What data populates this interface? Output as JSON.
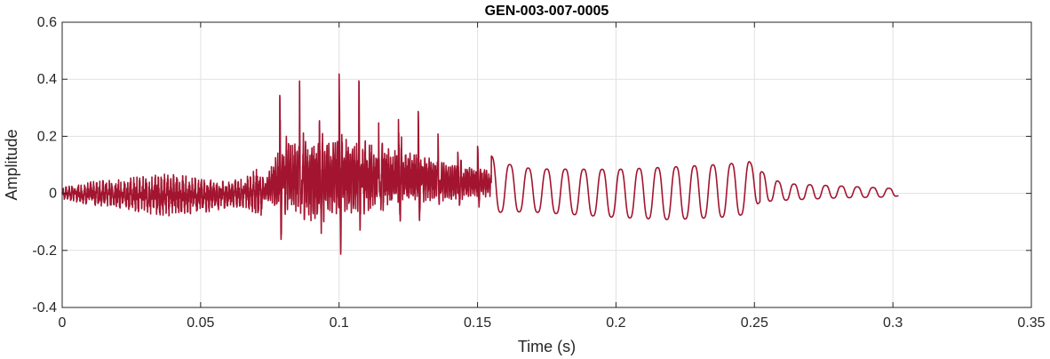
{
  "chart_data": {
    "type": "line",
    "title": "GEN-003-007-0005",
    "xlabel": "Time (s)",
    "ylabel": "Amplitude",
    "xlim": [
      0,
      0.35
    ],
    "ylim": [
      -0.4,
      0.6
    ],
    "xticks": [
      0,
      0.05,
      0.1,
      0.15,
      0.2,
      0.25,
      0.3,
      0.35
    ],
    "yticks": [
      -0.4,
      -0.2,
      0,
      0.2,
      0.4,
      0.6
    ],
    "xtick_labels": [
      "0",
      "0.05",
      "0.1",
      "0.15",
      "0.2",
      "0.25",
      "0.3",
      "0.35"
    ],
    "ytick_labels": [
      "-0.4",
      "-0.2",
      "0",
      "0.2",
      "0.4",
      "0.6"
    ],
    "grid": true,
    "series": [
      {
        "color": "#A2142F",
        "envelope": {
          "t": [
            0,
            0.01,
            0.02,
            0.03,
            0.04,
            0.05,
            0.06,
            0.067,
            0.073,
            0.08,
            0.085,
            0.09,
            0.1,
            0.11,
            0.12,
            0.13,
            0.14,
            0.15,
            0.16,
            0.17,
            0.2,
            0.22,
            0.24,
            0.248,
            0.252,
            0.26,
            0.28,
            0.3,
            0.302
          ],
          "max": [
            0.02,
            0.04,
            0.05,
            0.06,
            0.07,
            0.05,
            0.04,
            0.06,
            0.12,
            0.4,
            0.42,
            0.41,
            0.43,
            0.38,
            0.33,
            0.28,
            0.22,
            0.18,
            0.12,
            0.1,
            0.1,
            0.11,
            0.12,
            0.13,
            0.09,
            0.04,
            0.03,
            0.02,
            0.01
          ],
          "min": [
            -0.02,
            -0.04,
            -0.05,
            -0.07,
            -0.08,
            -0.07,
            -0.05,
            -0.05,
            -0.1,
            -0.28,
            -0.3,
            -0.33,
            -0.3,
            -0.27,
            -0.22,
            -0.17,
            -0.14,
            -0.1,
            -0.08,
            -0.08,
            -0.1,
            -0.11,
            -0.1,
            -0.09,
            -0.04,
            -0.03,
            -0.02,
            -0.015,
            -0.01
          ]
        }
      }
    ]
  }
}
